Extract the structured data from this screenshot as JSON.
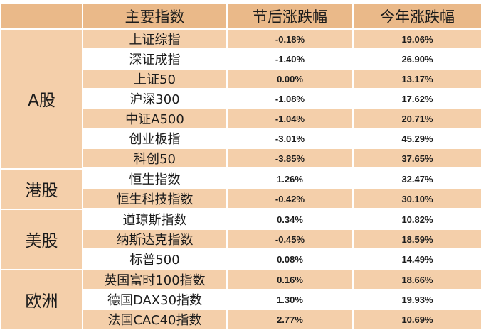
{
  "table": {
    "headers": [
      "",
      "主要指数",
      "节后涨跌幅",
      "今年涨跌幅"
    ],
    "groups": [
      {
        "market": "A股",
        "rows": [
          {
            "name": "上证综指",
            "post_holiday": "-0.18%",
            "ytd": "19.06%"
          },
          {
            "name": "深证成指",
            "post_holiday": "-1.40%",
            "ytd": "26.90%"
          },
          {
            "name": "上证50",
            "post_holiday": "0.00%",
            "ytd": "13.17%"
          },
          {
            "name": "沪深300",
            "post_holiday": "-1.08%",
            "ytd": "17.62%"
          },
          {
            "name": "中证A500",
            "post_holiday": "-1.04%",
            "ytd": "20.71%"
          },
          {
            "name": "创业板指",
            "post_holiday": "-3.01%",
            "ytd": "45.29%"
          },
          {
            "name": "科创50",
            "post_holiday": "-3.85%",
            "ytd": "37.65%"
          }
        ]
      },
      {
        "market": "港股",
        "rows": [
          {
            "name": "恒生指数",
            "post_holiday": "1.26%",
            "ytd": "32.47%"
          },
          {
            "name": "恒生科技指数",
            "post_holiday": "-0.42%",
            "ytd": "30.10%"
          }
        ]
      },
      {
        "market": "美股",
        "rows": [
          {
            "name": "道琼斯指数",
            "post_holiday": "0.34%",
            "ytd": "10.82%"
          },
          {
            "name": "纳斯达克指数",
            "post_holiday": "-0.45%",
            "ytd": "18.59%"
          },
          {
            "name": "标普500",
            "post_holiday": "0.08%",
            "ytd": "14.49%"
          }
        ]
      },
      {
        "market": "欧洲",
        "rows": [
          {
            "name": "英国富时100指数",
            "post_holiday": "0.16%",
            "ytd": "18.66%"
          },
          {
            "name": "德国DAX30指数",
            "post_holiday": "1.30%",
            "ytd": "19.93%"
          },
          {
            "name": "法国CAC40指数",
            "post_holiday": "2.77%",
            "ytd": "10.69%"
          }
        ]
      }
    ]
  }
}
